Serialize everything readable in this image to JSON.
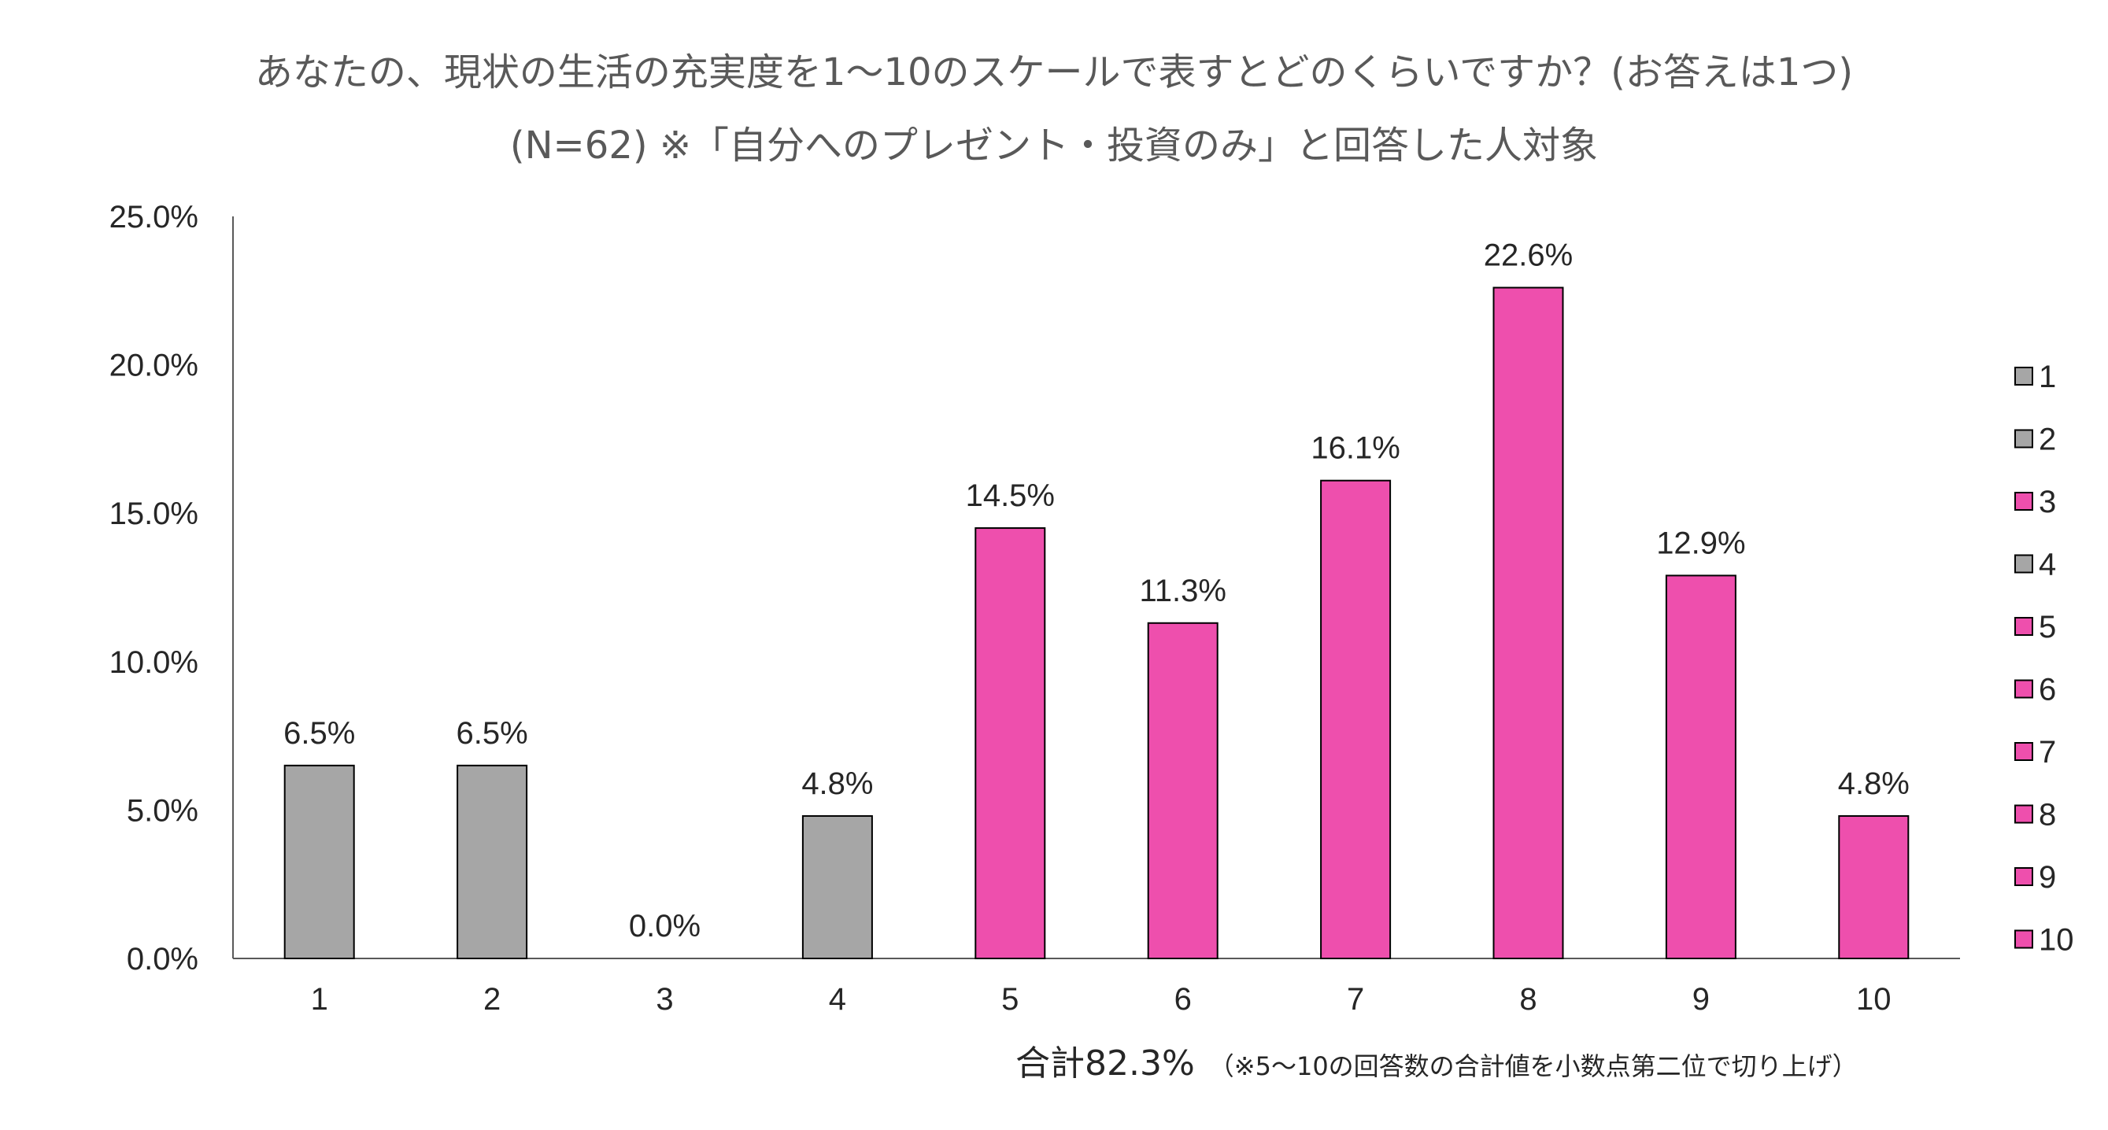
{
  "chart_data": {
    "type": "bar",
    "title": "あなたの、現状の生活の充実度を1～10のスケールで表すとどのくらいですか？(お答えは1つ)",
    "subtitle": "(N=62) ※「自分へのプレゼント・投資のみ」と回答した人対象",
    "categories": [
      "1",
      "2",
      "3",
      "4",
      "5",
      "6",
      "7",
      "8",
      "9",
      "10"
    ],
    "values": [
      6.5,
      6.5,
      0.0,
      4.8,
      14.5,
      11.3,
      16.1,
      22.6,
      12.9,
      4.8
    ],
    "value_labels": [
      "6.5%",
      "6.5%",
      "0.0%",
      "4.8%",
      "14.5%",
      "11.3%",
      "16.1%",
      "22.6%",
      "12.9%",
      "4.8%"
    ],
    "bar_colors": [
      "#A6A6A6",
      "#A6A6A6",
      "#EE4FAD",
      "#A6A6A6",
      "#EE4FAD",
      "#EE4FAD",
      "#EE4FAD",
      "#EE4FAD",
      "#EE4FAD",
      "#EE4FAD"
    ],
    "ylim": [
      0,
      25
    ],
    "y_ticks": [
      0,
      5,
      10,
      15,
      20,
      25
    ],
    "y_tick_labels": [
      "0.0%",
      "5.0%",
      "10.0%",
      "15.0%",
      "20.0%",
      "25.0%"
    ],
    "legend": {
      "position": "right",
      "entries": [
        "1",
        "2",
        "3",
        "4",
        "5",
        "6",
        "7",
        "8",
        "9",
        "10"
      ]
    },
    "grid": false
  },
  "footnote": {
    "total": "合計82.3%",
    "note": "（※5～10の回答数の合計値を小数点第二位で切り上げ）"
  }
}
